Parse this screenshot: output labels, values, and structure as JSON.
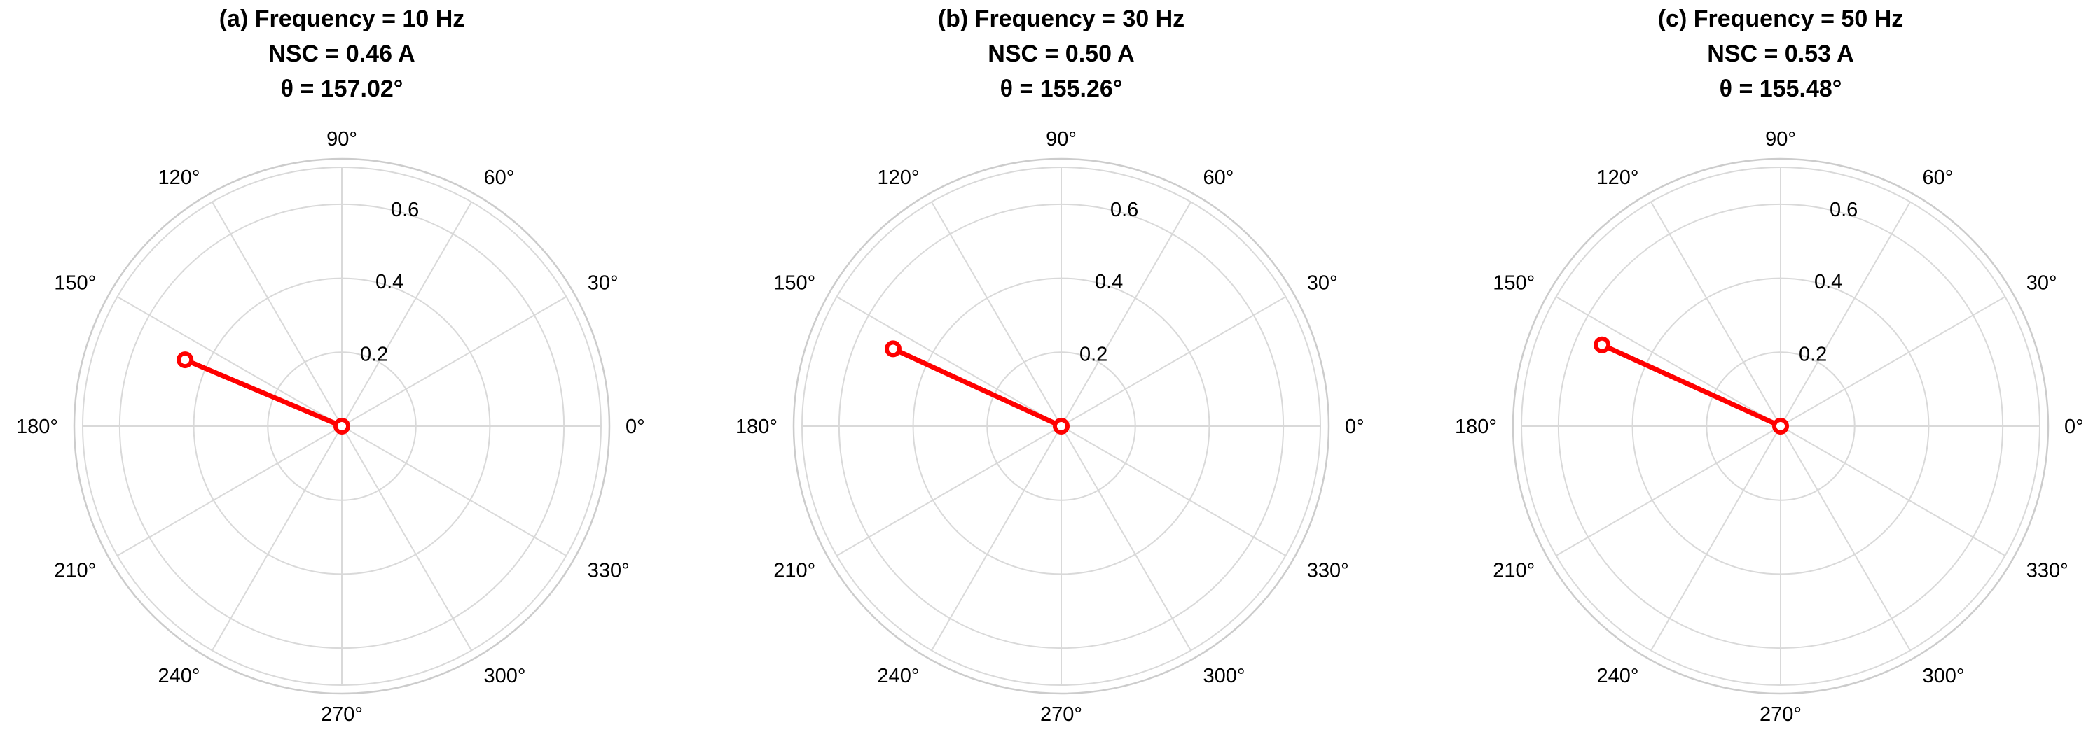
{
  "colors": {
    "vector": "#ff0000",
    "grid": "#d9d9d9",
    "outer_ring": "#cccccc"
  },
  "chart_data": [
    {
      "type": "polar",
      "title_lines": [
        "(a) Frequency = 10 Hz",
        "NSC = 0.46 A",
        "θ = 157.02°"
      ],
      "theta_deg": 157.02,
      "r": 0.46,
      "rlim": [
        0,
        0.7
      ],
      "r_ticks": [
        0.2,
        0.4,
        0.6
      ],
      "r_tick_labels": [
        "0.2",
        "0.4",
        "0.6"
      ],
      "angle_ticks": [
        0,
        30,
        60,
        90,
        120,
        150,
        180,
        210,
        240,
        270,
        300,
        330
      ],
      "angle_tick_labels": [
        "0°",
        "30°",
        "60°",
        "90°",
        "120°",
        "150°",
        "180°",
        "210°",
        "240°",
        "270°",
        "300°",
        "330°"
      ],
      "grid": true
    },
    {
      "type": "polar",
      "title_lines": [
        "(b) Frequency = 30 Hz",
        "NSC = 0.50 A",
        "θ = 155.26°"
      ],
      "theta_deg": 155.26,
      "r": 0.5,
      "rlim": [
        0,
        0.7
      ],
      "r_ticks": [
        0.2,
        0.4,
        0.6
      ],
      "r_tick_labels": [
        "0.2",
        "0.4",
        "0.6"
      ],
      "angle_ticks": [
        0,
        30,
        60,
        90,
        120,
        150,
        180,
        210,
        240,
        270,
        300,
        330
      ],
      "angle_tick_labels": [
        "0°",
        "30°",
        "60°",
        "90°",
        "120°",
        "150°",
        "180°",
        "210°",
        "240°",
        "270°",
        "300°",
        "330°"
      ],
      "grid": true
    },
    {
      "type": "polar",
      "title_lines": [
        "(c) Frequency = 50 Hz",
        "NSC = 0.53 A",
        "θ = 155.48°"
      ],
      "theta_deg": 155.48,
      "r": 0.53,
      "rlim": [
        0,
        0.7
      ],
      "r_ticks": [
        0.2,
        0.4,
        0.6
      ],
      "r_tick_labels": [
        "0.2",
        "0.4",
        "0.6"
      ],
      "angle_ticks": [
        0,
        30,
        60,
        90,
        120,
        150,
        180,
        210,
        240,
        270,
        300,
        330
      ],
      "angle_tick_labels": [
        "0°",
        "30°",
        "60°",
        "90°",
        "120°",
        "150°",
        "180°",
        "210°",
        "240°",
        "270°",
        "300°",
        "330°"
      ],
      "grid": true
    }
  ]
}
